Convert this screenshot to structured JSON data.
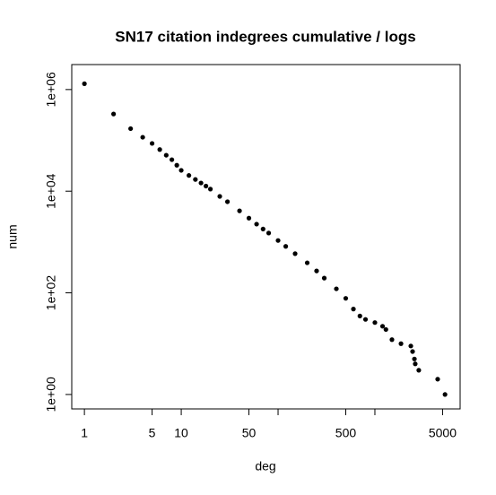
{
  "chart_data": {
    "type": "scatter",
    "title": "SN17 citation indegrees cumulative / logs",
    "x_label": "deg",
    "y_label": "num",
    "log_x": true,
    "log_y": true,
    "color": "#000000",
    "x": [
      1,
      2,
      3,
      4,
      5,
      6,
      7,
      8,
      9,
      10,
      12,
      14,
      16,
      18,
      20,
      25,
      30,
      40,
      50,
      60,
      70,
      80,
      100,
      120,
      150,
      200,
      250,
      300,
      400,
      500,
      600,
      700,
      800,
      1000,
      1200,
      1300,
      1500,
      1860,
      2350,
      2450,
      2560,
      2610,
      2840,
      4450,
      5300
    ],
    "values": [
      1300000,
      330000,
      170000,
      115000,
      87000,
      66000,
      51000,
      41700,
      32400,
      25700,
      20400,
      17000,
      14500,
      12600,
      11000,
      7900,
      6200,
      4100,
      2950,
      2250,
      1800,
      1500,
      1070,
      820,
      590,
      390,
      270,
      195,
      120,
      78,
      48,
      35,
      30,
      26,
      22,
      19,
      12,
      10,
      9,
      7,
      5,
      4,
      3,
      2,
      1
    ],
    "xlim": [
      0.74,
      7590
    ],
    "ylim": [
      0.52,
      3100000
    ],
    "xticks": [
      1,
      5,
      10,
      50,
      {
        "value": 100,
        "label": null
      },
      500,
      {
        "value": 1000,
        "label": null
      },
      5000
    ],
    "yticks": [
      {
        "value": 1,
        "label": "1e+00"
      },
      {
        "value": 100,
        "label": "1e+02"
      },
      {
        "value": 10000,
        "label": "1e+04"
      },
      {
        "value": 1000000,
        "label": "1e+06"
      }
    ]
  }
}
